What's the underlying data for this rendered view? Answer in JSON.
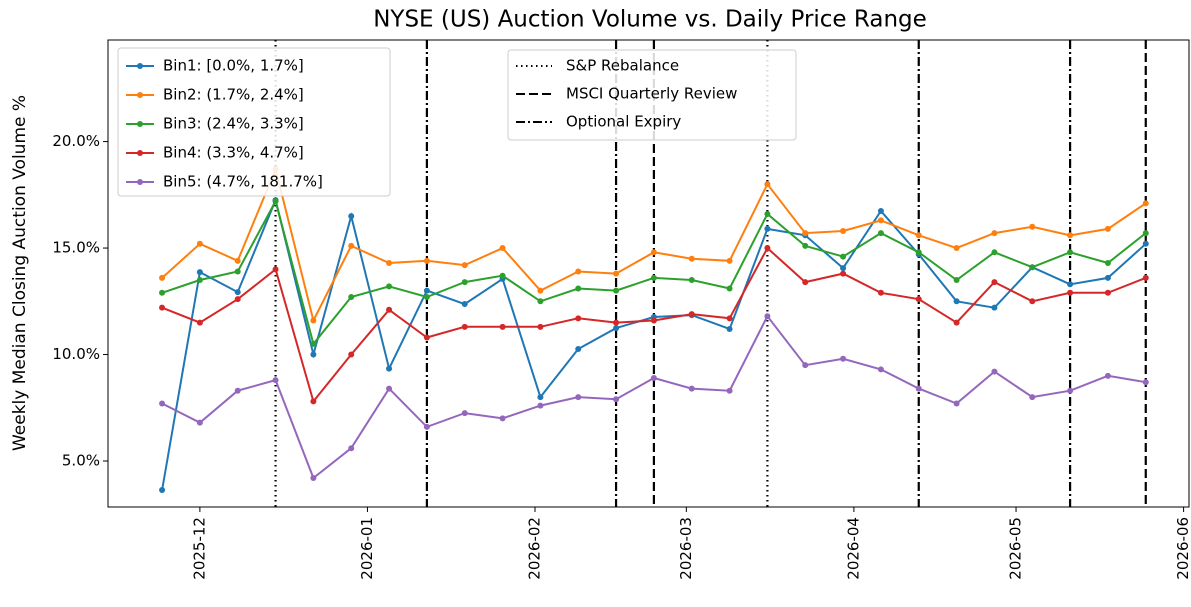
{
  "chart_data": {
    "type": "line",
    "title": "NYSE (US) Auction Volume vs. Daily Price Range",
    "ylabel": "Weekly Median Closing Auction Volume %",
    "x": [
      "2025-11-24",
      "2025-12-01",
      "2025-12-08",
      "2025-12-15",
      "2025-12-22",
      "2025-12-29",
      "2026-01-05",
      "2026-01-12",
      "2026-01-19",
      "2026-01-26",
      "2026-02-02",
      "2026-02-09",
      "2026-02-16",
      "2026-02-23",
      "2026-03-02",
      "2026-03-09",
      "2026-03-16",
      "2026-03-23",
      "2026-03-30",
      "2026-04-06",
      "2026-04-13",
      "2026-04-20",
      "2026-04-27",
      "2026-05-04",
      "2026-05-11",
      "2026-05-18",
      "2026-05-25"
    ],
    "series": [
      {
        "name": "Bin1: [0.0%, 1.7%]",
        "color": "#1f77b4",
        "values": [
          3.64,
          13.87,
          12.93,
          17.25,
          10.0,
          16.5,
          9.34,
          13.0,
          12.37,
          13.55,
          8.0,
          10.26,
          11.24,
          11.76,
          11.85,
          11.2,
          15.9,
          15.6,
          14.06,
          16.74,
          14.7,
          12.5,
          12.2,
          14.1,
          13.3,
          13.6,
          15.2
        ]
      },
      {
        "name": "Bin2: (1.7%, 2.4%]",
        "color": "#ff7f0e",
        "values": [
          13.6,
          15.2,
          14.4,
          18.7,
          11.6,
          15.1,
          14.3,
          14.4,
          14.2,
          15.0,
          13.0,
          13.9,
          13.8,
          14.8,
          14.5,
          14.4,
          18.0,
          15.7,
          15.8,
          16.3,
          15.6,
          15.0,
          15.7,
          16.0,
          15.6,
          15.9,
          17.1
        ]
      },
      {
        "name": "Bin3: (2.4%, 3.3%]",
        "color": "#2ca02c",
        "values": [
          12.9,
          13.5,
          13.9,
          17.2,
          10.5,
          12.7,
          13.2,
          12.7,
          13.4,
          13.7,
          12.5,
          13.1,
          13.0,
          13.6,
          13.5,
          13.1,
          16.6,
          15.1,
          14.6,
          15.7,
          14.8,
          13.5,
          14.8,
          14.1,
          14.8,
          14.3,
          15.7
        ]
      },
      {
        "name": "Bin4: (3.3%, 4.7%]",
        "color": "#d62728",
        "values": [
          12.2,
          11.5,
          12.6,
          14.0,
          7.8,
          10.0,
          12.1,
          10.8,
          11.3,
          11.3,
          11.3,
          11.7,
          11.5,
          11.6,
          11.9,
          11.7,
          15.0,
          13.4,
          13.8,
          12.9,
          12.6,
          11.5,
          13.4,
          12.5,
          12.9,
          12.9,
          13.6
        ]
      },
      {
        "name": "Bin5: (4.7%, 181.7%]",
        "color": "#9467bd",
        "values": [
          7.7,
          6.8,
          8.3,
          8.8,
          4.2,
          5.6,
          8.4,
          6.6,
          7.25,
          7.0,
          7.6,
          8.0,
          7.9,
          8.9,
          8.4,
          8.3,
          11.8,
          9.5,
          9.8,
          9.3,
          8.4,
          7.7,
          9.2,
          8.0,
          8.3,
          9.0,
          8.7
        ]
      }
    ],
    "vlines": [
      {
        "name": "S&P Rebalance",
        "style": "dotted",
        "color": "#000000",
        "x": [
          "2025-12-15",
          "2026-03-16"
        ]
      },
      {
        "name": "MSCI Quarterly Review",
        "style": "dashed",
        "color": "#000000",
        "x": [
          "2026-02-23",
          "2026-05-25"
        ]
      },
      {
        "name": "Optional Expiry",
        "style": "dashdot",
        "color": "#000000",
        "x": [
          "2026-01-12",
          "2026-02-16",
          "2026-04-13",
          "2026-05-11"
        ]
      }
    ],
    "xlim": [
      "2025-11-14",
      "2026-06-02"
    ],
    "xticks": [
      {
        "value": "2025-12-01",
        "label": "2025-12"
      },
      {
        "value": "2026-01-01",
        "label": "2026-01"
      },
      {
        "value": "2026-02-01",
        "label": "2026-02"
      },
      {
        "value": "2026-03-01",
        "label": "2026-03"
      },
      {
        "value": "2026-04-01",
        "label": "2026-04"
      },
      {
        "value": "2026-05-01",
        "label": "2026-05"
      },
      {
        "value": "2026-06-01",
        "label": "2026-06"
      }
    ],
    "ylim": [
      2.84,
      24.77
    ],
    "yticks": [
      {
        "value": 5,
        "label": "5.0%"
      },
      {
        "value": 10,
        "label": "10.0%"
      },
      {
        "value": 15,
        "label": "15.0%"
      },
      {
        "value": 20,
        "label": "20.0%"
      }
    ],
    "legend": "upper left",
    "grid": false
  }
}
